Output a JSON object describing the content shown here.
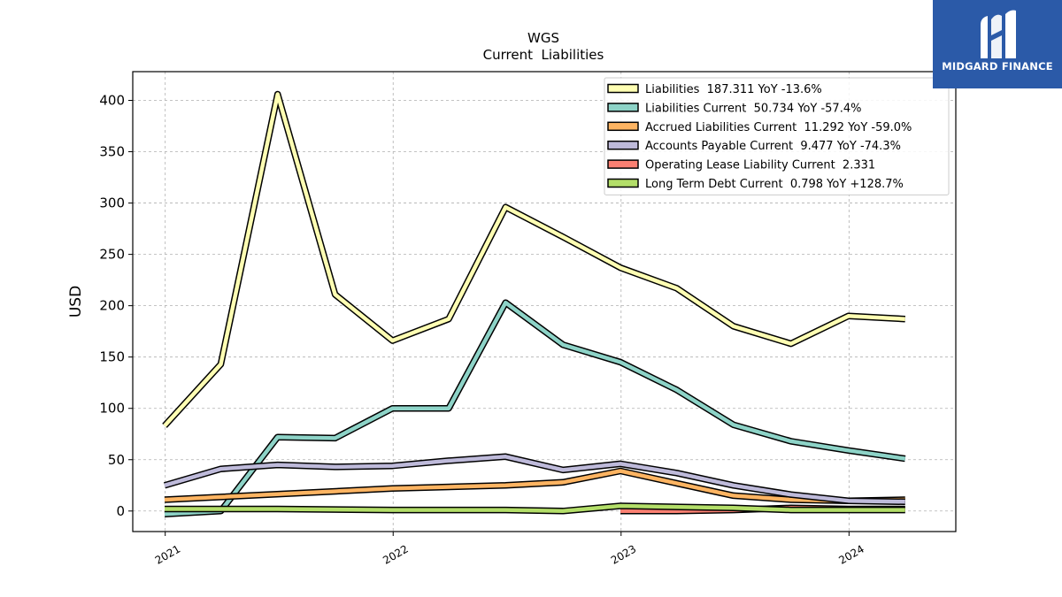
{
  "brand": {
    "name": "MIDGARD FINANCE",
    "background": "#2b5aa8",
    "icon": "midgard-m-logo-icon"
  },
  "chart_data": {
    "type": "line",
    "title": "WGS",
    "subtitle": "Current  Liabilities",
    "xlabel": "",
    "ylabel": "USD",
    "ylim": [
      -20,
      428
    ],
    "yticks": [
      0,
      50,
      100,
      150,
      200,
      250,
      300,
      350,
      400
    ],
    "xlim": [
      "2020-11-10",
      "2024-06-20"
    ],
    "xticks": [
      {
        "date": "2021-01-01",
        "label": "2021"
      },
      {
        "date": "2022-01-01",
        "label": "2022"
      },
      {
        "date": "2023-01-01",
        "label": "2023"
      },
      {
        "date": "2024-01-01",
        "label": "2024"
      }
    ],
    "grid": true,
    "legend_position": "top-right",
    "series": [
      {
        "name": "Liabilities",
        "legend": "Liabilities  187.311 YoY -13.6%",
        "color": "#ffffb3",
        "points": [
          [
            "2020-12-31",
            83
          ],
          [
            "2021-03-31",
            143
          ],
          [
            "2021-06-30",
            406
          ],
          [
            "2021-09-30",
            211
          ],
          [
            "2021-12-31",
            166
          ],
          [
            "2022-03-31",
            187
          ],
          [
            "2022-06-30",
            296
          ],
          [
            "2022-09-30",
            267
          ],
          [
            "2022-12-31",
            237
          ],
          [
            "2023-03-31",
            217
          ],
          [
            "2023-06-30",
            180
          ],
          [
            "2023-09-30",
            163
          ],
          [
            "2023-12-31",
            190
          ],
          [
            "2024-03-31",
            187
          ]
        ]
      },
      {
        "name": "Liabilities Current",
        "legend": "Liabilities Current  50.734 YoY -57.4%",
        "color": "#8dd3c7",
        "points": [
          [
            "2020-12-31",
            -3
          ],
          [
            "2021-03-31",
            0
          ],
          [
            "2021-06-30",
            72
          ],
          [
            "2021-09-30",
            71
          ],
          [
            "2021-12-31",
            100
          ],
          [
            "2022-03-31",
            100
          ],
          [
            "2022-06-30",
            203
          ],
          [
            "2022-09-30",
            162
          ],
          [
            "2022-12-31",
            145
          ],
          [
            "2023-03-31",
            118
          ],
          [
            "2023-06-30",
            84
          ],
          [
            "2023-09-30",
            68
          ],
          [
            "2023-12-31",
            59
          ],
          [
            "2024-03-31",
            51
          ]
        ]
      },
      {
        "name": "Accrued Liabilities Current",
        "legend": "Accrued Liabilities Current  11.292 YoY -59.0%",
        "color": "#fdb462",
        "points": [
          [
            "2020-12-31",
            11
          ],
          [
            "2021-12-31",
            22
          ],
          [
            "2022-06-30",
            25
          ],
          [
            "2022-09-30",
            28
          ],
          [
            "2022-12-31",
            39
          ],
          [
            "2023-03-31",
            27
          ],
          [
            "2023-06-30",
            15
          ],
          [
            "2023-09-30",
            11
          ],
          [
            "2023-12-31",
            10
          ],
          [
            "2024-03-31",
            11
          ]
        ]
      },
      {
        "name": "Accounts Payable Current",
        "legend": "Accounts Payable Current  9.477 YoY -74.3%",
        "color": "#bebada",
        "points": [
          [
            "2020-12-31",
            25
          ],
          [
            "2021-03-31",
            41
          ],
          [
            "2021-06-30",
            45
          ],
          [
            "2021-09-30",
            43
          ],
          [
            "2021-12-31",
            44
          ],
          [
            "2022-03-31",
            49
          ],
          [
            "2022-06-30",
            53
          ],
          [
            "2022-09-30",
            40
          ],
          [
            "2022-12-31",
            46
          ],
          [
            "2023-03-31",
            37
          ],
          [
            "2023-06-30",
            25
          ],
          [
            "2023-09-30",
            16
          ],
          [
            "2023-12-31",
            10
          ],
          [
            "2024-03-31",
            9
          ]
        ]
      },
      {
        "name": "Operating Lease Liability Current",
        "legend": "Operating Lease Liability Current  2.331",
        "color": "#fb8072",
        "points": [
          [
            "2022-12-31",
            0
          ],
          [
            "2023-03-31",
            0
          ],
          [
            "2023-06-30",
            1
          ],
          [
            "2023-09-30",
            3
          ],
          [
            "2023-12-31",
            2
          ],
          [
            "2024-03-31",
            2
          ]
        ]
      },
      {
        "name": "Long Term Debt Current",
        "legend": "Long Term Debt Current  0.798 YoY +128.7%",
        "color": "#b3de69",
        "points": [
          [
            "2020-12-31",
            2
          ],
          [
            "2021-06-30",
            2
          ],
          [
            "2021-12-31",
            1
          ],
          [
            "2022-06-30",
            1
          ],
          [
            "2022-09-30",
            0
          ],
          [
            "2022-12-31",
            5
          ],
          [
            "2023-06-30",
            3
          ],
          [
            "2023-09-30",
            1
          ],
          [
            "2023-12-31",
            1
          ],
          [
            "2024-03-31",
            1
          ]
        ]
      }
    ]
  }
}
